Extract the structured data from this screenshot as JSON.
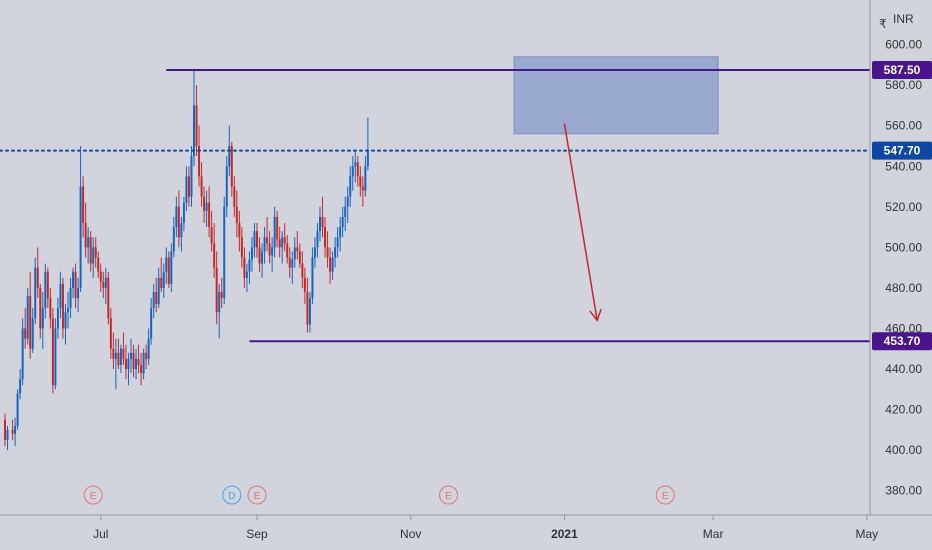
{
  "chart_data": {
    "type": "candlestick",
    "currency": "INR",
    "currency_glyph": "₹",
    "ylim": [
      368,
      622
    ],
    "y_ticks": [
      380,
      400,
      420,
      440,
      460,
      480,
      500,
      520,
      540,
      560,
      580,
      600
    ],
    "x_ticks": [
      {
        "label": "Jul",
        "day": 38,
        "bold": false
      },
      {
        "label": "Sep",
        "day": 100,
        "bold": false
      },
      {
        "label": "Nov",
        "day": 161,
        "bold": false
      },
      {
        "label": "2021",
        "day": 222,
        "bold": true
      },
      {
        "label": "Mar",
        "day": 281,
        "bold": false
      },
      {
        "label": "May",
        "day": 342,
        "bold": false
      }
    ],
    "levels": [
      {
        "name": "resistance-high",
        "value": 587.5,
        "label": "587.50",
        "color": "#4a148c",
        "style": "solid",
        "from_day": 64
      },
      {
        "name": "current-price",
        "value": 547.7,
        "label": "547.70",
        "color": "#0d47a1",
        "style": "dotted",
        "from_day": -1
      },
      {
        "name": "support-low",
        "value": 453.7,
        "label": "453.70",
        "color": "#4a148c",
        "style": "solid",
        "from_day": 97
      }
    ],
    "zone": {
      "from_day": 202,
      "to_day": 283,
      "low": 556,
      "high": 594,
      "color": "#8fa0cc"
    },
    "arrow": {
      "from_day": 222,
      "from_value": 561,
      "to_day": 235,
      "to_value": 464,
      "color": "#c62828"
    },
    "events": [
      {
        "day": 35,
        "label": "E",
        "color": "#e57373"
      },
      {
        "day": 90,
        "label": "D",
        "color": "#42a5f5"
      },
      {
        "day": 100,
        "label": "E",
        "color": "#e57373"
      },
      {
        "day": 176,
        "label": "E",
        "color": "#e57373"
      },
      {
        "day": 262,
        "label": "E",
        "color": "#e57373"
      }
    ],
    "up_color": "#1565c0",
    "down_color": "#c62828",
    "ohlc": [
      [
        0,
        415,
        418,
        402,
        405
      ],
      [
        1,
        405,
        412,
        400,
        410
      ],
      [
        3,
        410,
        415,
        405,
        408
      ],
      [
        4,
        408,
        416,
        402,
        412
      ],
      [
        5,
        412,
        430,
        410,
        428
      ],
      [
        6,
        428,
        440,
        425,
        435
      ],
      [
        7,
        435,
        465,
        432,
        460
      ],
      [
        8,
        460,
        470,
        450,
        455
      ],
      [
        9,
        455,
        480,
        452,
        476
      ],
      [
        10,
        476,
        488,
        445,
        450
      ],
      [
        11,
        450,
        470,
        448,
        465
      ],
      [
        12,
        465,
        495,
        462,
        490
      ],
      [
        13,
        490,
        500,
        475,
        480
      ],
      [
        14,
        480,
        482,
        455,
        460
      ],
      [
        15,
        460,
        478,
        450,
        470
      ],
      [
        16,
        470,
        492,
        465,
        488
      ],
      [
        17,
        488,
        490,
        470,
        475
      ],
      [
        18,
        475,
        480,
        460,
        465
      ],
      [
        19,
        465,
        470,
        428,
        432
      ],
      [
        20,
        432,
        465,
        430,
        460
      ],
      [
        21,
        460,
        475,
        455,
        470
      ],
      [
        22,
        470,
        488,
        465,
        482
      ],
      [
        23,
        482,
        485,
        455,
        460
      ],
      [
        24,
        460,
        472,
        452,
        468
      ],
      [
        25,
        468,
        478,
        460,
        470
      ],
      [
        26,
        470,
        485,
        465,
        480
      ],
      [
        27,
        480,
        490,
        475,
        488
      ],
      [
        28,
        488,
        492,
        470,
        475
      ],
      [
        29,
        475,
        485,
        468,
        480
      ],
      [
        30,
        480,
        550,
        478,
        530
      ],
      [
        31,
        530,
        535,
        505,
        512
      ],
      [
        32,
        512,
        522,
        495,
        500
      ],
      [
        33,
        500,
        510,
        492,
        505
      ],
      [
        34,
        505,
        508,
        488,
        492
      ],
      [
        35,
        492,
        505,
        485,
        500
      ],
      [
        36,
        500,
        505,
        490,
        495
      ],
      [
        37,
        495,
        498,
        485,
        488
      ],
      [
        38,
        488,
        492,
        478,
        483
      ],
      [
        39,
        483,
        488,
        475,
        480
      ],
      [
        40,
        480,
        490,
        472,
        485
      ],
      [
        41,
        485,
        488,
        462,
        465
      ],
      [
        42,
        465,
        470,
        445,
        450
      ],
      [
        43,
        450,
        458,
        440,
        445
      ],
      [
        44,
        445,
        455,
        430,
        448
      ],
      [
        45,
        448,
        455,
        440,
        442
      ],
      [
        46,
        442,
        452,
        438,
        450
      ],
      [
        47,
        450,
        458,
        442,
        445
      ],
      [
        48,
        445,
        452,
        435,
        440
      ],
      [
        49,
        440,
        448,
        432,
        445
      ],
      [
        50,
        445,
        455,
        438,
        448
      ],
      [
        51,
        448,
        452,
        436,
        440
      ],
      [
        52,
        440,
        450,
        435,
        445
      ],
      [
        53,
        445,
        452,
        438,
        442
      ],
      [
        54,
        442,
        448,
        432,
        438
      ],
      [
        55,
        438,
        450,
        435,
        448
      ],
      [
        56,
        448,
        452,
        440,
        445
      ],
      [
        57,
        445,
        460,
        442,
        455
      ],
      [
        58,
        455,
        475,
        452,
        470
      ],
      [
        59,
        470,
        482,
        465,
        478
      ],
      [
        60,
        478,
        485,
        468,
        472
      ],
      [
        61,
        472,
        490,
        470,
        485
      ],
      [
        62,
        485,
        495,
        478,
        480
      ],
      [
        63,
        480,
        492,
        475,
        488
      ],
      [
        64,
        488,
        500,
        482,
        495
      ],
      [
        65,
        495,
        498,
        480,
        482
      ],
      [
        66,
        482,
        502,
        478,
        498
      ],
      [
        67,
        498,
        515,
        495,
        510
      ],
      [
        68,
        510,
        525,
        505,
        520
      ],
      [
        69,
        520,
        528,
        500,
        505
      ],
      [
        70,
        505,
        515,
        498,
        512
      ],
      [
        71,
        512,
        525,
        508,
        522
      ],
      [
        72,
        522,
        540,
        518,
        535
      ],
      [
        73,
        535,
        540,
        520,
        525
      ],
      [
        74,
        525,
        550,
        520,
        545
      ],
      [
        75,
        545,
        588,
        540,
        570
      ],
      [
        76,
        570,
        580,
        545,
        550
      ],
      [
        77,
        550,
        560,
        530,
        535
      ],
      [
        78,
        535,
        542,
        520,
        525
      ],
      [
        79,
        525,
        530,
        512,
        518
      ],
      [
        80,
        518,
        528,
        510,
        522
      ],
      [
        81,
        522,
        530,
        505,
        510
      ],
      [
        82,
        510,
        518,
        498,
        502
      ],
      [
        83,
        502,
        512,
        485,
        490
      ],
      [
        84,
        490,
        498,
        462,
        468
      ],
      [
        85,
        468,
        482,
        455,
        478
      ],
      [
        86,
        478,
        485,
        470,
        475
      ],
      [
        87,
        475,
        525,
        472,
        520
      ],
      [
        88,
        520,
        545,
        515,
        540
      ],
      [
        89,
        540,
        560,
        535,
        550
      ],
      [
        90,
        550,
        552,
        525,
        530
      ],
      [
        91,
        530,
        535,
        515,
        520
      ],
      [
        92,
        520,
        528,
        505,
        512
      ],
      [
        93,
        512,
        518,
        498,
        505
      ],
      [
        94,
        505,
        510,
        490,
        495
      ],
      [
        95,
        495,
        500,
        480,
        485
      ],
      [
        96,
        485,
        492,
        478,
        488
      ],
      [
        97,
        488,
        498,
        482,
        494
      ],
      [
        98,
        494,
        505,
        488,
        500
      ],
      [
        99,
        500,
        512,
        495,
        508
      ],
      [
        100,
        508,
        512,
        495,
        500
      ],
      [
        101,
        500,
        505,
        488,
        492
      ],
      [
        102,
        492,
        502,
        485,
        498
      ],
      [
        103,
        498,
        510,
        492,
        505
      ],
      [
        104,
        505,
        515,
        498,
        502
      ],
      [
        105,
        502,
        508,
        492,
        496
      ],
      [
        106,
        496,
        505,
        488,
        500
      ],
      [
        107,
        500,
        520,
        495,
        515
      ],
      [
        108,
        515,
        518,
        500,
        504
      ],
      [
        109,
        504,
        510,
        495,
        500
      ],
      [
        110,
        500,
        508,
        492,
        505
      ],
      [
        111,
        505,
        512,
        498,
        502
      ],
      [
        112,
        502,
        506,
        492,
        495
      ],
      [
        113,
        495,
        500,
        485,
        490
      ],
      [
        114,
        490,
        498,
        482,
        494
      ],
      [
        115,
        494,
        505,
        490,
        500
      ],
      [
        116,
        500,
        508,
        494,
        498
      ],
      [
        117,
        498,
        502,
        490,
        492
      ],
      [
        118,
        492,
        498,
        480,
        485
      ],
      [
        119,
        485,
        490,
        472,
        478
      ],
      [
        120,
        478,
        485,
        458,
        462
      ],
      [
        121,
        462,
        478,
        458,
        475
      ],
      [
        122,
        475,
        500,
        472,
        495
      ],
      [
        123,
        495,
        505,
        490,
        500
      ],
      [
        124,
        500,
        512,
        495,
        508
      ],
      [
        125,
        508,
        520,
        503,
        515
      ],
      [
        126,
        515,
        525,
        505,
        510
      ],
      [
        127,
        510,
        515,
        495,
        500
      ],
      [
        128,
        500,
        508,
        490,
        495
      ],
      [
        129,
        495,
        500,
        482,
        488
      ],
      [
        130,
        488,
        498,
        484,
        495
      ],
      [
        131,
        495,
        505,
        490,
        500
      ],
      [
        132,
        500,
        510,
        495,
        505
      ],
      [
        133,
        505,
        515,
        498,
        510
      ],
      [
        134,
        510,
        520,
        505,
        515
      ],
      [
        135,
        515,
        525,
        508,
        520
      ],
      [
        136,
        520,
        530,
        512,
        525
      ],
      [
        137,
        525,
        540,
        520,
        535
      ],
      [
        138,
        535,
        545,
        528,
        540
      ],
      [
        139,
        540,
        548,
        532,
        542
      ],
      [
        140,
        542,
        545,
        530,
        535
      ],
      [
        141,
        535,
        540,
        525,
        530
      ],
      [
        142,
        530,
        535,
        520,
        528
      ],
      [
        143,
        528,
        545,
        525,
        540
      ],
      [
        144,
        540,
        564,
        538,
        548
      ]
    ]
  }
}
